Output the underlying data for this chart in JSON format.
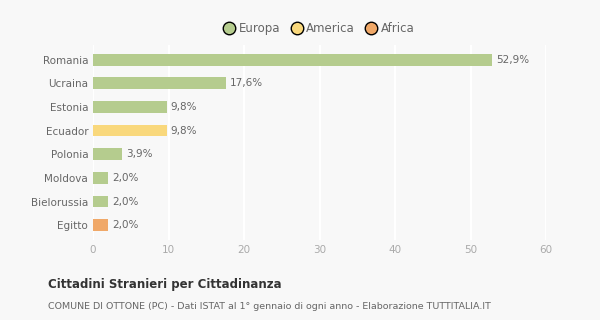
{
  "categories": [
    "Romania",
    "Ucraina",
    "Estonia",
    "Ecuador",
    "Polonia",
    "Moldova",
    "Bielorussia",
    "Egitto"
  ],
  "values": [
    52.9,
    17.6,
    9.8,
    9.8,
    3.9,
    2.0,
    2.0,
    2.0
  ],
  "labels": [
    "52,9%",
    "17,6%",
    "9,8%",
    "9,8%",
    "3,9%",
    "2,0%",
    "2,0%",
    "2,0%"
  ],
  "colors": [
    "#b5cc8e",
    "#b5cc8e",
    "#b5cc8e",
    "#f9d87c",
    "#b5cc8e",
    "#b5cc8e",
    "#b5cc8e",
    "#f0a868"
  ],
  "legend": [
    {
      "label": "Europa",
      "color": "#b5cc8e"
    },
    {
      "label": "America",
      "color": "#f9d87c"
    },
    {
      "label": "Africa",
      "color": "#f0a868"
    }
  ],
  "xlim": [
    0,
    60
  ],
  "xticks": [
    0,
    10,
    20,
    30,
    40,
    50,
    60
  ],
  "title": "Cittadini Stranieri per Cittadinanza",
  "subtitle": "COMUNE DI OTTONE (PC) - Dati ISTAT al 1° gennaio di ogni anno - Elaborazione TUTTITALIA.IT",
  "background_color": "#f8f8f8",
  "grid_color": "#ffffff",
  "bar_height": 0.5,
  "label_fontsize": 7.5,
  "ytick_fontsize": 7.5,
  "xtick_fontsize": 7.5,
  "legend_fontsize": 8.5
}
